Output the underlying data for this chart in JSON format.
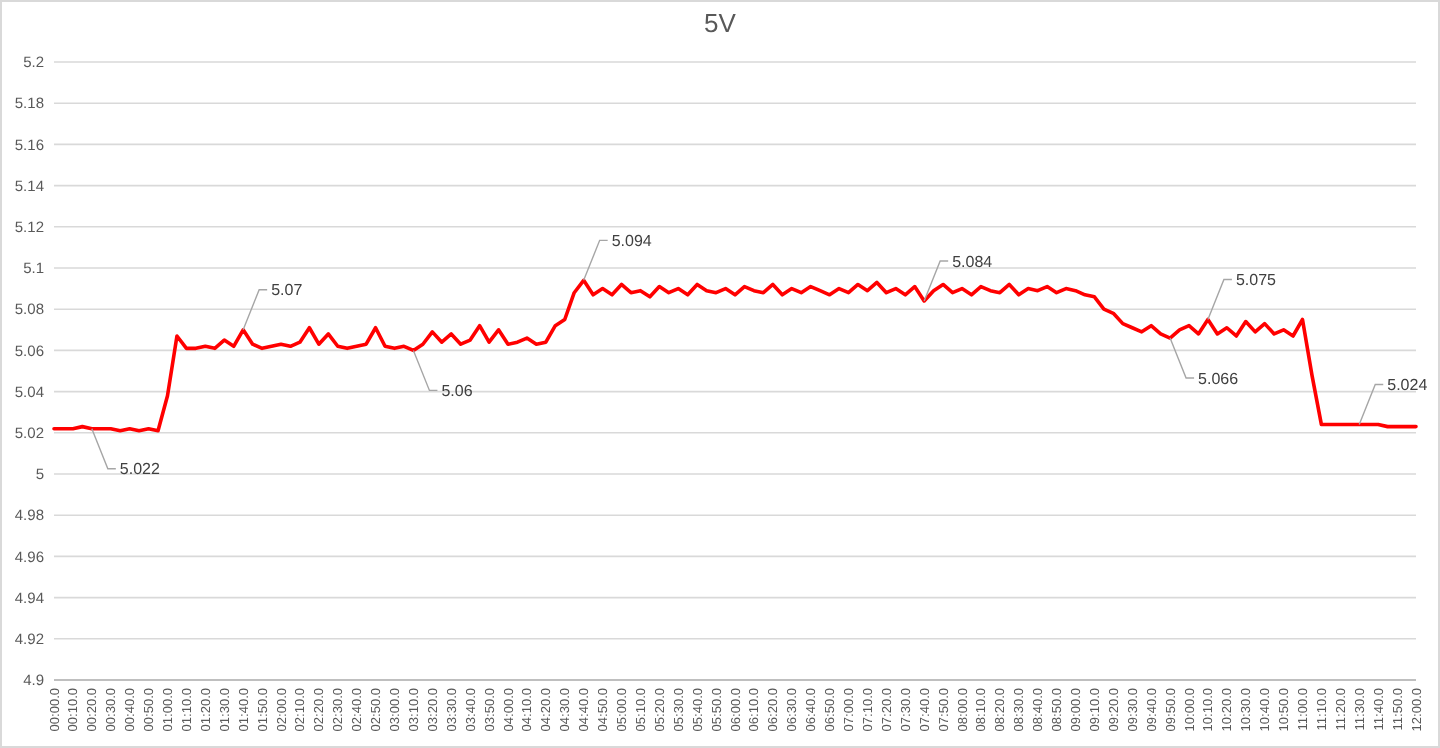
{
  "chart_data": {
    "type": "line",
    "title": "5V",
    "categories": [
      "00:00.0",
      null,
      "00:10.0",
      null,
      "00:20.0",
      null,
      "00:30.0",
      null,
      "00:40.0",
      null,
      "00:50.0",
      null,
      "01:00.0",
      null,
      "01:10.0",
      null,
      "01:20.0",
      null,
      "01:30.0",
      null,
      "01:40.0",
      null,
      "01:50.0",
      null,
      "02:00.0",
      null,
      "02:10.0",
      null,
      "02:20.0",
      null,
      "02:30.0",
      null,
      "02:40.0",
      null,
      "02:50.0",
      null,
      "03:00.0",
      null,
      "03:10.0",
      null,
      "03:20.0",
      null,
      "03:30.0",
      null,
      "03:40.0",
      null,
      "03:50.0",
      null,
      "04:00.0",
      null,
      "04:10.0",
      null,
      "04:20.0",
      null,
      "04:30.0",
      null,
      "04:40.0",
      null,
      "04:50.0",
      null,
      "05:00.0",
      null,
      "05:10.0",
      null,
      "05:20.0",
      null,
      "05:30.0",
      null,
      "05:40.0",
      null,
      "05:50.0",
      null,
      "06:00.0",
      null,
      "06:10.0",
      null,
      "06:20.0",
      null,
      "06:30.0",
      null,
      "06:40.0",
      null,
      "06:50.0",
      null,
      "07:00.0",
      null,
      "07:10.0",
      null,
      "07:20.0",
      null,
      "07:30.0",
      null,
      "07:40.0",
      null,
      "07:50.0",
      null,
      "08:00.0",
      null,
      "08:10.0",
      null,
      "08:20.0",
      null,
      "08:30.0",
      null,
      "08:40.0",
      null,
      "08:50.0",
      null,
      "09:00.0",
      null,
      "09:10.0",
      null,
      "09:20.0",
      null,
      "09:30.0",
      null,
      "09:40.0",
      null,
      "09:50.0",
      null,
      "10:00.0",
      null,
      "10:10.0",
      null,
      "10:20.0",
      null,
      "10:30.0",
      null,
      "10:40.0",
      null,
      "10:50.0",
      null,
      "11:00.0",
      null,
      "11:10.0",
      null,
      "11:20.0",
      null,
      "11:30.0",
      null,
      "11:40.0",
      null,
      "11:50.0",
      null,
      "12:00.0"
    ],
    "series": [
      {
        "color": "#ff0000",
        "values": [
          5.022,
          5.022,
          5.022,
          5.023,
          5.022,
          5.022,
          5.022,
          5.021,
          5.022,
          5.021,
          5.022,
          5.021,
          5.038,
          5.067,
          5.061,
          5.061,
          5.062,
          5.061,
          5.065,
          5.062,
          5.07,
          5.063,
          5.061,
          5.062,
          5.063,
          5.062,
          5.064,
          5.071,
          5.063,
          5.068,
          5.062,
          5.061,
          5.062,
          5.063,
          5.071,
          5.062,
          5.061,
          5.062,
          5.06,
          5.063,
          5.069,
          5.064,
          5.068,
          5.063,
          5.065,
          5.072,
          5.064,
          5.07,
          5.063,
          5.064,
          5.066,
          5.063,
          5.064,
          5.072,
          5.075,
          5.088,
          5.094,
          5.087,
          5.09,
          5.087,
          5.092,
          5.088,
          5.089,
          5.086,
          5.091,
          5.088,
          5.09,
          5.087,
          5.092,
          5.089,
          5.088,
          5.09,
          5.087,
          5.091,
          5.089,
          5.088,
          5.092,
          5.087,
          5.09,
          5.088,
          5.091,
          5.089,
          5.087,
          5.09,
          5.088,
          5.092,
          5.089,
          5.093,
          5.088,
          5.09,
          5.087,
          5.091,
          5.084,
          5.089,
          5.092,
          5.088,
          5.09,
          5.087,
          5.091,
          5.089,
          5.088,
          5.092,
          5.087,
          5.09,
          5.089,
          5.091,
          5.088,
          5.09,
          5.089,
          5.087,
          5.086,
          5.08,
          5.078,
          5.073,
          5.071,
          5.069,
          5.072,
          5.068,
          5.066,
          5.07,
          5.072,
          5.068,
          5.075,
          5.068,
          5.071,
          5.067,
          5.074,
          5.069,
          5.073,
          5.068,
          5.07,
          5.067,
          5.075,
          5.048,
          5.024,
          5.024,
          5.024,
          5.024,
          5.024,
          5.024,
          5.024,
          5.023,
          5.023,
          5.023,
          5.023
        ]
      }
    ],
    "ylim": [
      4.9,
      5.2
    ],
    "yticks": [
      4.9,
      4.92,
      4.94,
      4.96,
      4.98,
      5,
      5.02,
      5.04,
      5.06,
      5.08,
      5.1,
      5.12,
      5.14,
      5.16,
      5.18,
      5.2
    ],
    "grid": "y",
    "marker": "none",
    "line_style": "solid",
    "annotations": [
      {
        "text": "5.022",
        "x": "00:20.0",
        "y": 5.022
      },
      {
        "text": "5.07",
        "x": "01:40.0",
        "y": 5.07
      },
      {
        "text": "5.06",
        "x": "03:10.0",
        "y": 5.06
      },
      {
        "text": "5.094",
        "x": "04:40.0",
        "y": 5.094
      },
      {
        "text": "5.084",
        "x": "07:40.0",
        "y": 5.084
      },
      {
        "text": "5.066",
        "x": "09:50.0",
        "y": 5.066
      },
      {
        "text": "5.075",
        "x": "10:10.0",
        "y": 5.075
      },
      {
        "text": "5.024",
        "x": "11:30.0",
        "y": 5.024
      }
    ]
  }
}
